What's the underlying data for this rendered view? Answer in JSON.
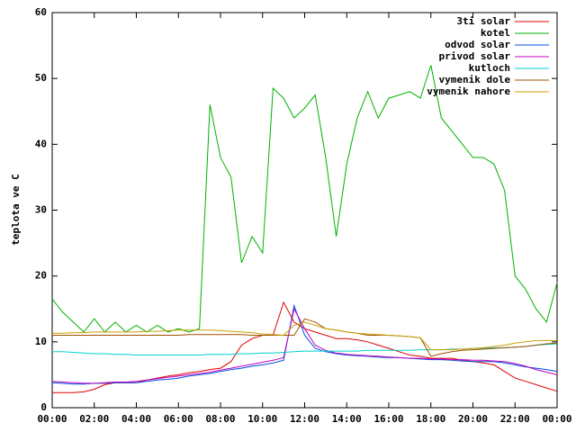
{
  "chart_data": {
    "type": "line",
    "y_label": "teplota ve C",
    "x": [
      0,
      0.5,
      1,
      1.5,
      2,
      2.5,
      3,
      3.5,
      4,
      4.5,
      5,
      5.5,
      6,
      6.5,
      7,
      7.5,
      8,
      8.5,
      9,
      9.5,
      10,
      10.5,
      11,
      11.5,
      12,
      12.5,
      13,
      13.5,
      14,
      14.5,
      15,
      15.5,
      16,
      16.5,
      17,
      17.5,
      18,
      18.5,
      19,
      19.5,
      20,
      20.5,
      21,
      21.5,
      22,
      22.5,
      23,
      23.5,
      24
    ],
    "xlim": [
      0,
      24
    ],
    "xticks": [
      {
        "value": 0,
        "label": "00:00"
      },
      {
        "value": 2,
        "label": "02:00"
      },
      {
        "value": 4,
        "label": "04:00"
      },
      {
        "value": 6,
        "label": "06:00"
      },
      {
        "value": 8,
        "label": "08:00"
      },
      {
        "value": 10,
        "label": "10:00"
      },
      {
        "value": 12,
        "label": "12:00"
      },
      {
        "value": 14,
        "label": "14:00"
      },
      {
        "value": 16,
        "label": "16:00"
      },
      {
        "value": 18,
        "label": "18:00"
      },
      {
        "value": 20,
        "label": "20:00"
      },
      {
        "value": 22,
        "label": "22:00"
      },
      {
        "value": 24,
        "label": "00:00"
      }
    ],
    "ylim": [
      0,
      60
    ],
    "yticks": [
      0,
      10,
      20,
      30,
      40,
      50,
      60
    ],
    "legend": "top-right",
    "series": [
      {
        "name": "3ti solar",
        "color": "#e00000",
        "values": [
          2.3,
          2.3,
          2.3,
          2.4,
          2.8,
          3.5,
          3.8,
          3.8,
          3.8,
          4.2,
          4.5,
          4.8,
          5,
          5.3,
          5.5,
          5.8,
          6,
          7,
          9.5,
          10.5,
          11,
          11,
          16,
          13,
          12,
          11.5,
          11,
          10.5,
          10.5,
          10.3,
          10,
          9.5,
          9,
          8.5,
          8,
          7.8,
          7.5,
          7.5,
          7.5,
          7.2,
          7,
          6.8,
          6.5,
          5.5,
          4.5,
          4,
          3.5,
          3,
          2.5
        ]
      },
      {
        "name": "kotel",
        "color": "#00b000",
        "values": [
          16.5,
          14.5,
          13,
          11.5,
          13.5,
          11.5,
          13,
          11.5,
          12.5,
          11.5,
          12.5,
          11.5,
          12,
          11.5,
          12,
          46,
          38,
          35,
          22,
          26,
          23.5,
          48.5,
          47,
          44,
          45.5,
          47.5,
          38,
          26,
          37,
          44,
          48,
          44,
          47,
          47.5,
          48,
          47,
          52,
          44,
          42,
          40,
          38,
          38,
          37,
          33,
          20,
          18,
          15,
          13,
          19
        ]
      },
      {
        "name": "odvod solar",
        "color": "#0050e0",
        "values": [
          3.8,
          3.7,
          3.6,
          3.6,
          3.7,
          3.7,
          3.8,
          3.8,
          3.8,
          4,
          4.2,
          4.3,
          4.5,
          4.8,
          5,
          5.2,
          5.5,
          5.8,
          6,
          6.3,
          6.5,
          6.8,
          7.2,
          15.5,
          11,
          9,
          8.5,
          8.2,
          8,
          7.9,
          7.8,
          7.7,
          7.6,
          7.6,
          7.5,
          7.4,
          7.3,
          7.3,
          7.2,
          7.1,
          7,
          7,
          7,
          6.8,
          6.5,
          6.2,
          6,
          5.8,
          5.5
        ]
      },
      {
        "name": "privod solar",
        "color": "#c000c0",
        "values": [
          4,
          3.9,
          3.8,
          3.7,
          3.7,
          3.8,
          3.9,
          3.9,
          4,
          4.2,
          4.4,
          4.6,
          4.8,
          5,
          5.2,
          5.4,
          5.7,
          6,
          6.3,
          6.6,
          6.9,
          7.2,
          7.6,
          15,
          12,
          9.5,
          8.7,
          8.3,
          8.1,
          8,
          7.9,
          7.8,
          7.7,
          7.6,
          7.5,
          7.5,
          7.4,
          7.4,
          7.3,
          7.3,
          7.2,
          7.2,
          7.1,
          7,
          6.7,
          6.3,
          5.8,
          5.4,
          5
        ]
      },
      {
        "name": "kutloch",
        "color": "#00d0d0",
        "values": [
          8.5,
          8.5,
          8.4,
          8.3,
          8.2,
          8.2,
          8.1,
          8.1,
          8,
          8,
          8,
          8,
          8,
          8,
          8,
          8.1,
          8.1,
          8.1,
          8.2,
          8.2,
          8.3,
          8.3,
          8.4,
          8.5,
          8.6,
          8.6,
          8.6,
          8.6,
          8.6,
          8.6,
          8.7,
          8.7,
          8.7,
          8.7,
          8.7,
          8.8,
          8.8,
          8.8,
          8.9,
          8.9,
          9,
          9,
          9.1,
          9.1,
          9.2,
          9.3,
          9.5,
          9.6,
          9.7
        ]
      },
      {
        "name": "vymenik dole",
        "color": "#a05000",
        "values": [
          11,
          11,
          11,
          11,
          11,
          11,
          11,
          11,
          11,
          11,
          11,
          11,
          11,
          11.1,
          11.1,
          11.1,
          11.1,
          11.1,
          11.1,
          11,
          11,
          11,
          11,
          11,
          13.5,
          13,
          12,
          11.8,
          11.5,
          11.3,
          11,
          11,
          11,
          10.9,
          10.8,
          10.6,
          7.8,
          8.2,
          8.5,
          8.7,
          8.8,
          8.9,
          9,
          9.1,
          9.2,
          9.3,
          9.5,
          9.7,
          9.8
        ]
      },
      {
        "name": "vymenik nahore",
        "color": "#c8a000",
        "values": [
          11.3,
          11.3,
          11.4,
          11.4,
          11.5,
          11.5,
          11.5,
          11.5,
          11.5,
          11.6,
          11.6,
          11.7,
          11.8,
          11.8,
          11.8,
          11.8,
          11.7,
          11.6,
          11.5,
          11.4,
          11.2,
          11.1,
          11,
          12.5,
          13,
          12.5,
          12,
          11.8,
          11.5,
          11.3,
          11.2,
          11.1,
          11,
          10.9,
          10.8,
          10.6,
          8.8,
          8.8,
          8.8,
          8.9,
          9,
          9.1,
          9.3,
          9.5,
          9.8,
          10,
          10.2,
          10.2,
          10.2
        ]
      }
    ]
  }
}
